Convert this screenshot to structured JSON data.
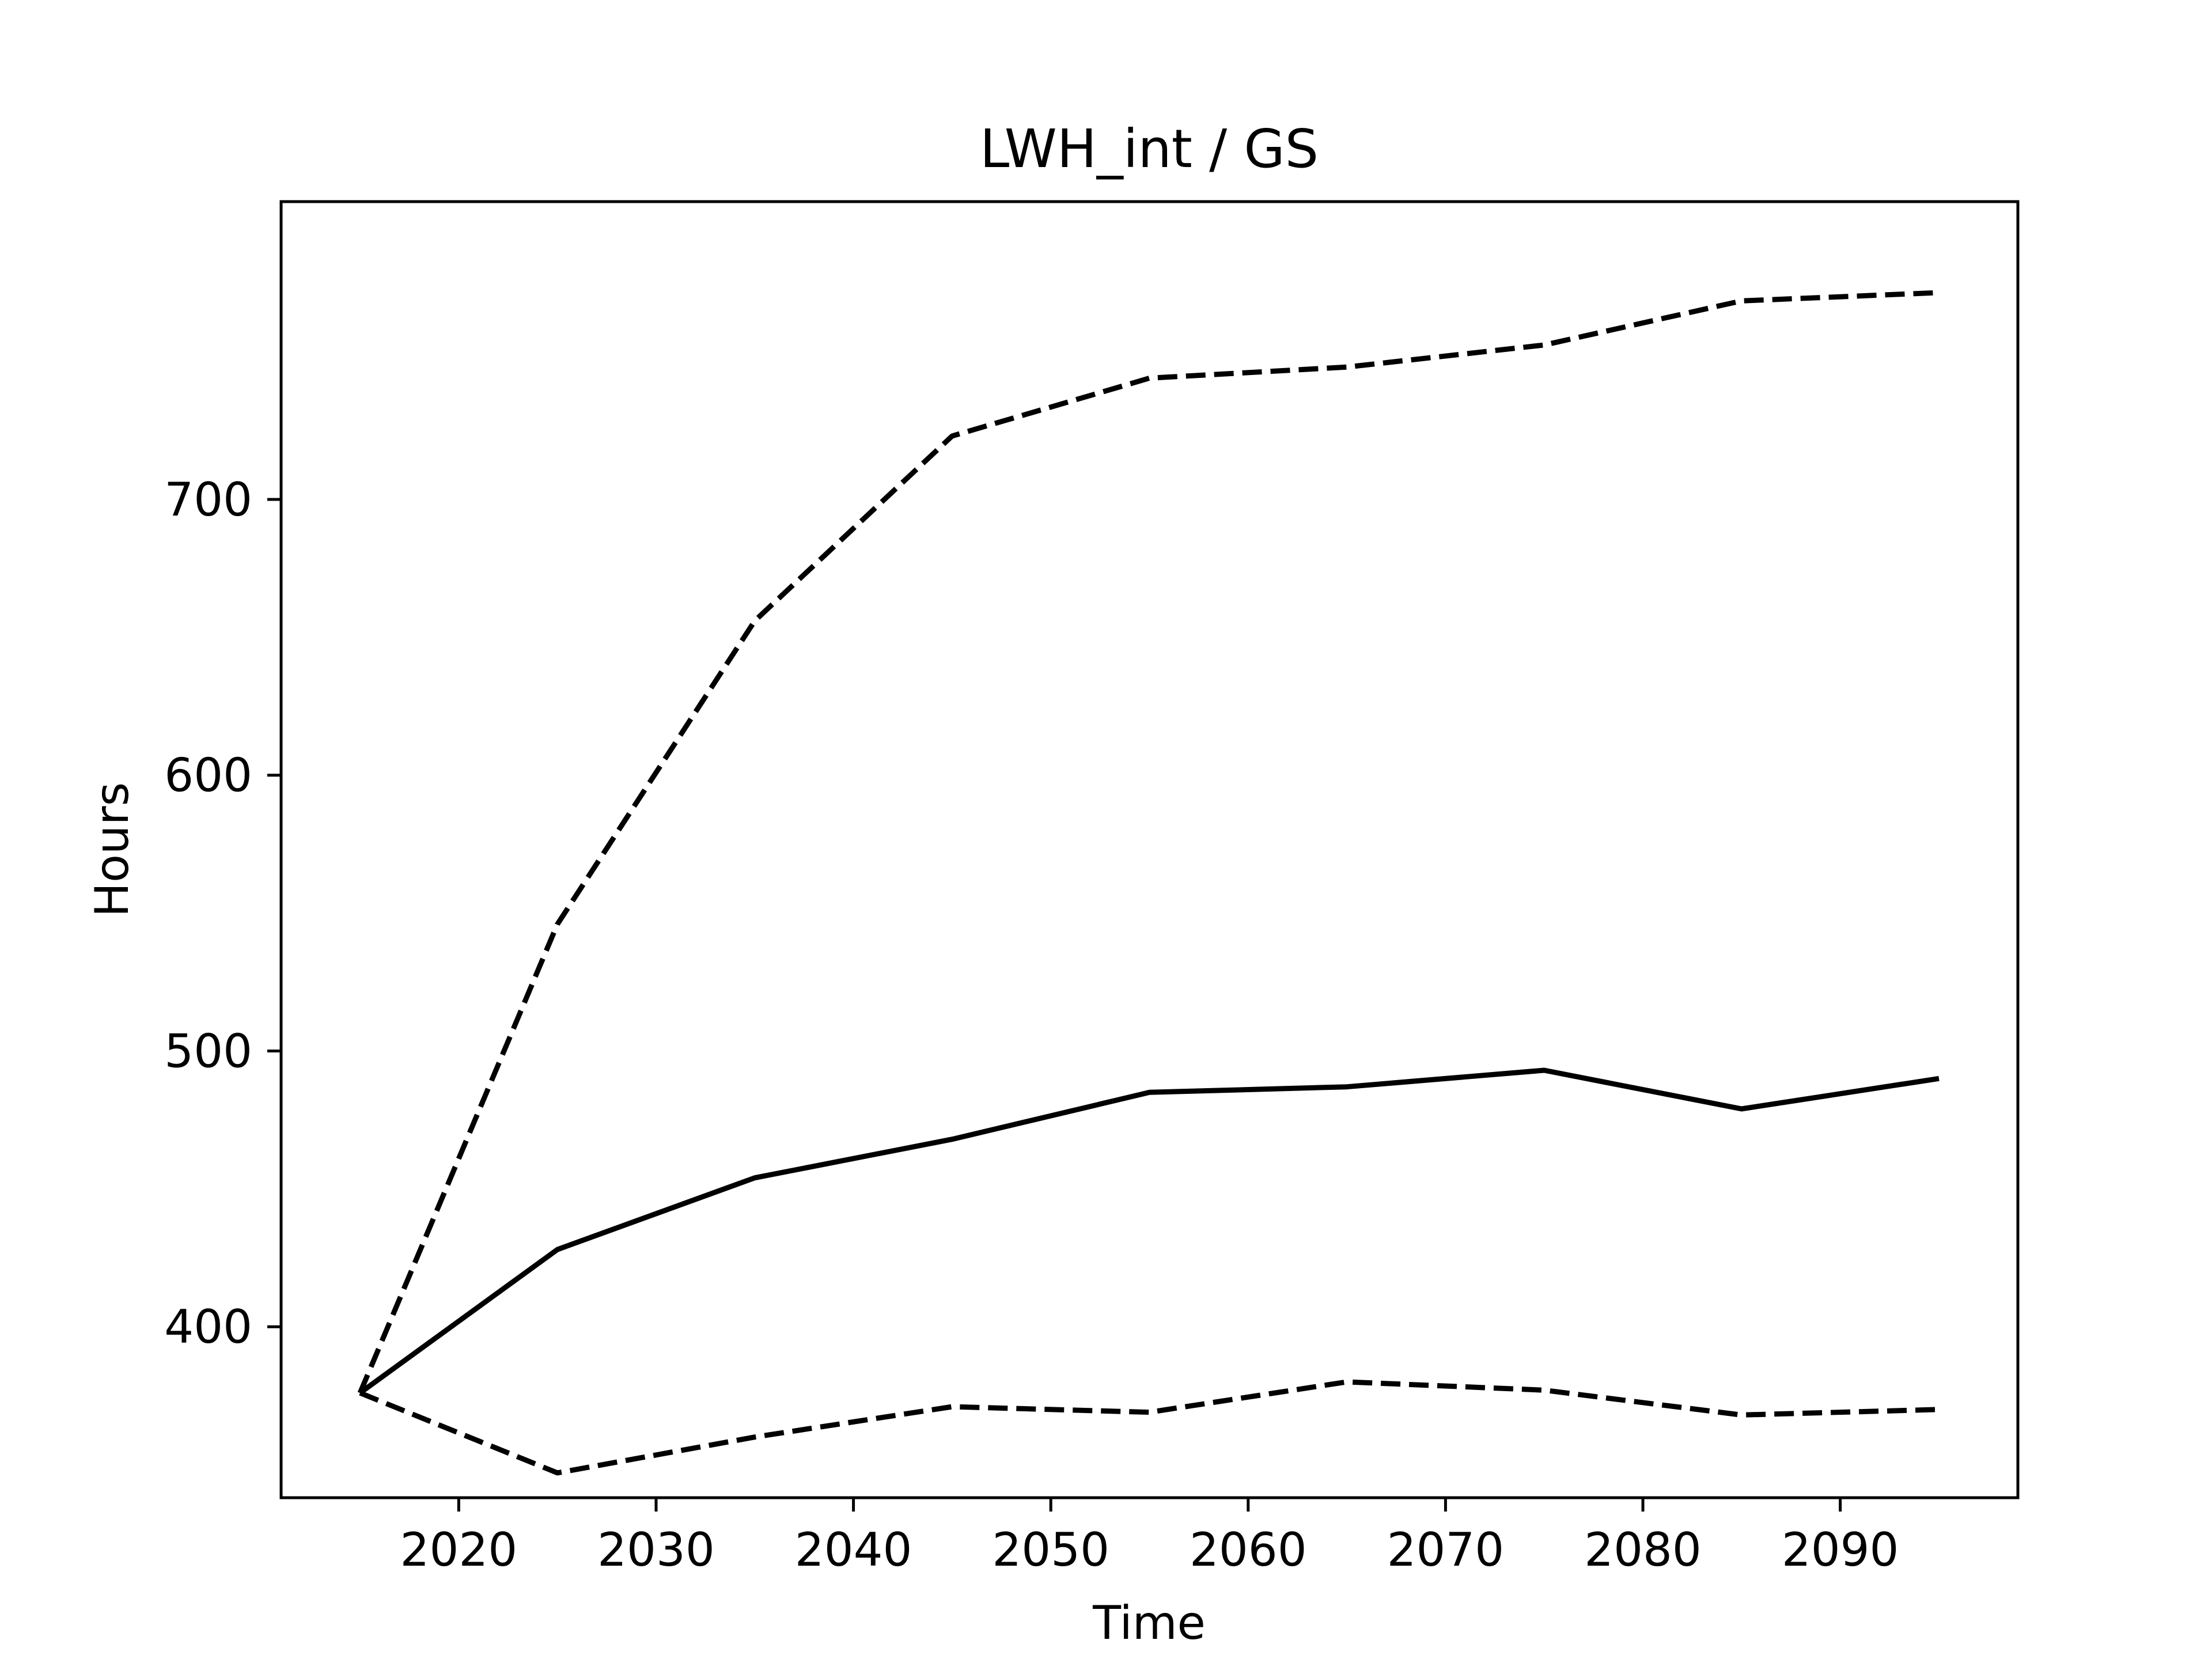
{
  "chart_data": {
    "type": "line",
    "title": "LWH_int / GS",
    "xlabel": "Time",
    "ylabel": "Hours",
    "xlim": [
      2011,
      2099
    ],
    "ylim": [
      338,
      808
    ],
    "xticks": [
      2020,
      2030,
      2040,
      2050,
      2060,
      2070,
      2080,
      2090
    ],
    "yticks": [
      400,
      500,
      600,
      700
    ],
    "grid": false,
    "legend": "none",
    "x": [
      2015,
      2025,
      2035,
      2045,
      2055,
      2065,
      2075,
      2085,
      2095
    ],
    "series": [
      {
        "style": "solid",
        "color": "#000000",
        "values": [
          376,
          428,
          454,
          468,
          485,
          487,
          493,
          479,
          490
        ]
      },
      {
        "style": "dashed",
        "color": "#000000",
        "values": [
          376,
          546,
          656,
          723,
          744,
          748,
          756,
          772,
          775
        ]
      },
      {
        "style": "dashed",
        "color": "#000000",
        "values": [
          376,
          347,
          360,
          371,
          369,
          380,
          377,
          368,
          370
        ]
      }
    ]
  }
}
